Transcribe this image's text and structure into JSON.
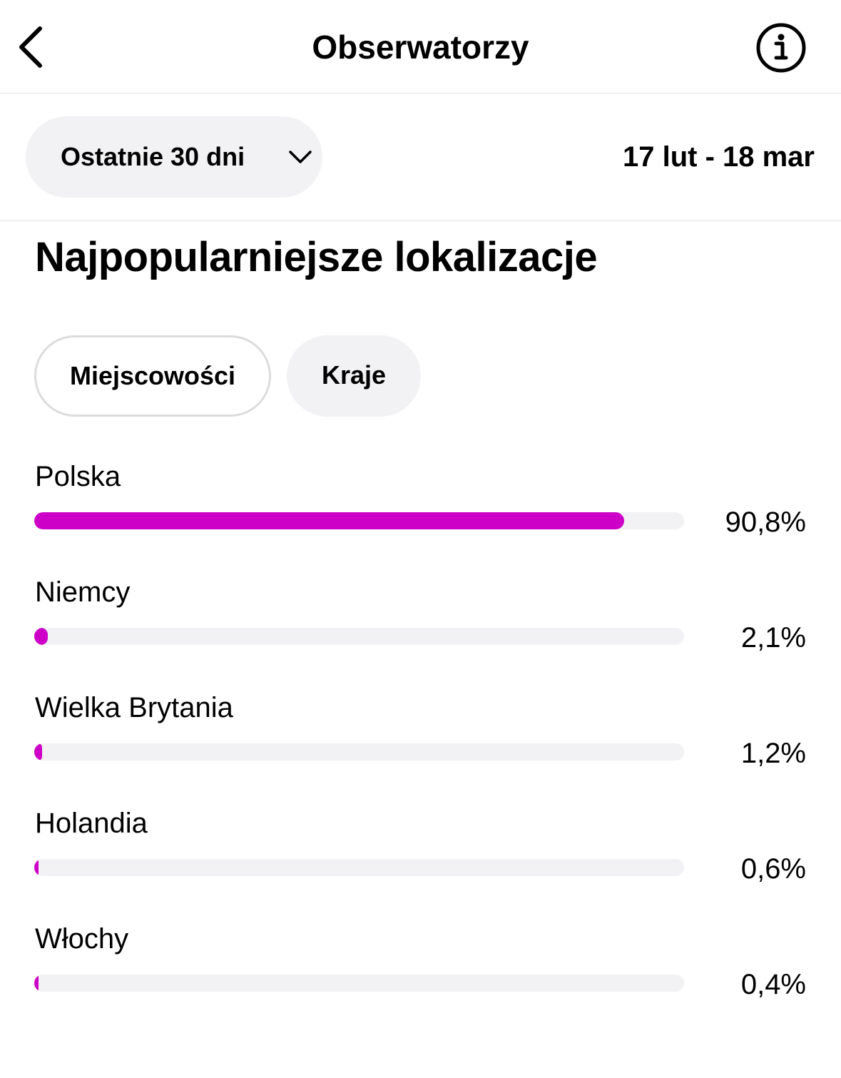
{
  "header": {
    "title": "Obserwatorzy",
    "back_icon": "chevron-left-icon",
    "info_icon": "info-circle-icon"
  },
  "filters": {
    "range_label": "Ostatnie 30 dni",
    "range_icon": "chevron-down-icon",
    "date_range": "17 lut - 18 mar"
  },
  "section": {
    "title": "Najpopularniejsze lokalizacje",
    "tabs": [
      {
        "label": "Miejscowości",
        "selected": false
      },
      {
        "label": "Kraje",
        "selected": true
      }
    ]
  },
  "colors": {
    "bar_fill": "#cc00c6",
    "bar_track": "#f2f2f4"
  },
  "locations": [
    {
      "name": "Polska",
      "percent_label": "90,8%",
      "value": 90.8
    },
    {
      "name": "Niemcy",
      "percent_label": "2,1%",
      "value": 2.1
    },
    {
      "name": "Wielka Brytania",
      "percent_label": "1,2%",
      "value": 1.2
    },
    {
      "name": "Holandia",
      "percent_label": "0,6%",
      "value": 0.6
    },
    {
      "name": "Włochy",
      "percent_label": "0,4%",
      "value": 0.4
    }
  ]
}
